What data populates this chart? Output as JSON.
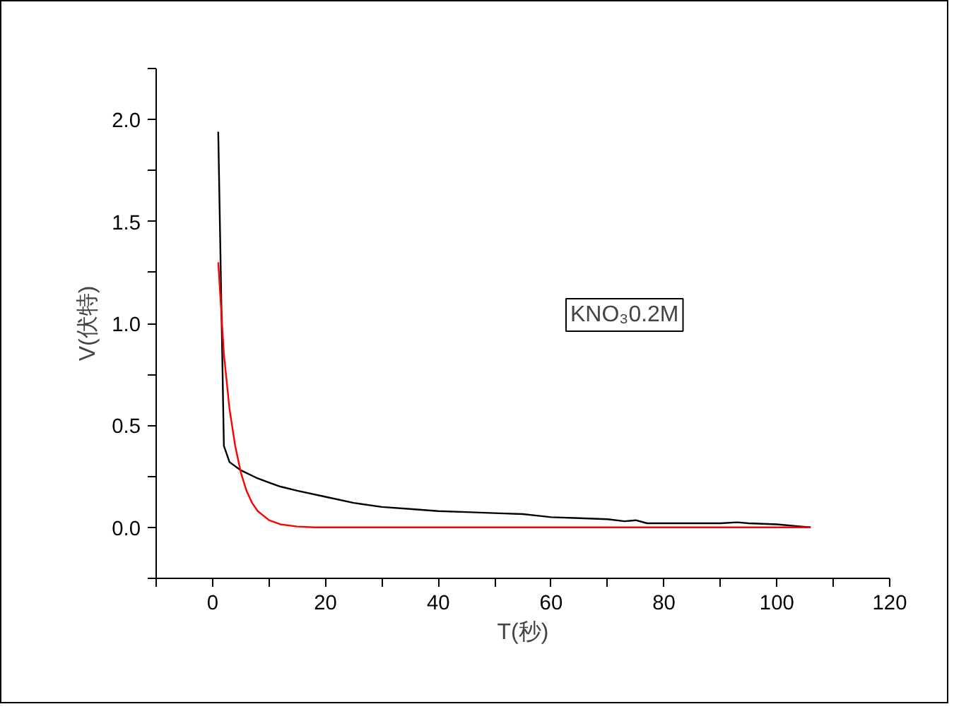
{
  "chart_data": {
    "type": "line",
    "xlabel": "T(秒)",
    "ylabel": "V(伏特)",
    "annotations": [
      "KNO₃0.2M"
    ],
    "xlim": [
      -10,
      120
    ],
    "ylim": [
      -0.25,
      2.25
    ],
    "xticks": [
      {
        "value": -10,
        "label": null
      },
      0,
      {
        "value": 10,
        "label": null
      },
      20,
      {
        "value": 30,
        "label": null
      },
      40,
      {
        "value": 50,
        "label": null
      },
      60,
      {
        "value": 70,
        "label": null
      },
      80,
      {
        "value": 90,
        "label": null
      },
      100,
      {
        "value": 110,
        "label": null
      },
      120
    ],
    "yticks": [
      {
        "value": -0.25,
        "label": null
      },
      {
        "value": 0,
        "label": "0.0"
      },
      {
        "value": 0.25,
        "label": null
      },
      0.5,
      {
        "value": 0.75,
        "label": null
      },
      {
        "value": 1,
        "label": "1.0"
      },
      {
        "value": 1.25,
        "label": null
      },
      1.5,
      {
        "value": 1.75,
        "label": null
      },
      {
        "value": 2,
        "label": "2.0"
      },
      {
        "value": 2.25,
        "label": null
      }
    ],
    "grid": false,
    "line_style": "solid",
    "series": [
      {
        "color": "#000000",
        "x": [
          1,
          2,
          3,
          5,
          8,
          10,
          12,
          15,
          20,
          25,
          30,
          35,
          40,
          45,
          50,
          55,
          60,
          65,
          70,
          73,
          75,
          77,
          80,
          85,
          90,
          93,
          95,
          100,
          104,
          106
        ],
        "values": [
          1.94,
          0.4,
          0.32,
          0.28,
          0.24,
          0.22,
          0.2,
          0.18,
          0.15,
          0.12,
          0.1,
          0.09,
          0.08,
          0.075,
          0.07,
          0.065,
          0.05,
          0.045,
          0.04,
          0.03,
          0.035,
          0.02,
          0.02,
          0.02,
          0.02,
          0.025,
          0.02,
          0.015,
          0.005,
          0.0
        ]
      },
      {
        "color": "#ff0000",
        "x": [
          1,
          2,
          3,
          4,
          5,
          6,
          7,
          8,
          10,
          12,
          15,
          18,
          30,
          60,
          106
        ],
        "values": [
          1.3,
          0.85,
          0.58,
          0.4,
          0.27,
          0.18,
          0.12,
          0.08,
          0.035,
          0.015,
          0.004,
          0,
          0,
          0,
          0
        ]
      }
    ]
  }
}
